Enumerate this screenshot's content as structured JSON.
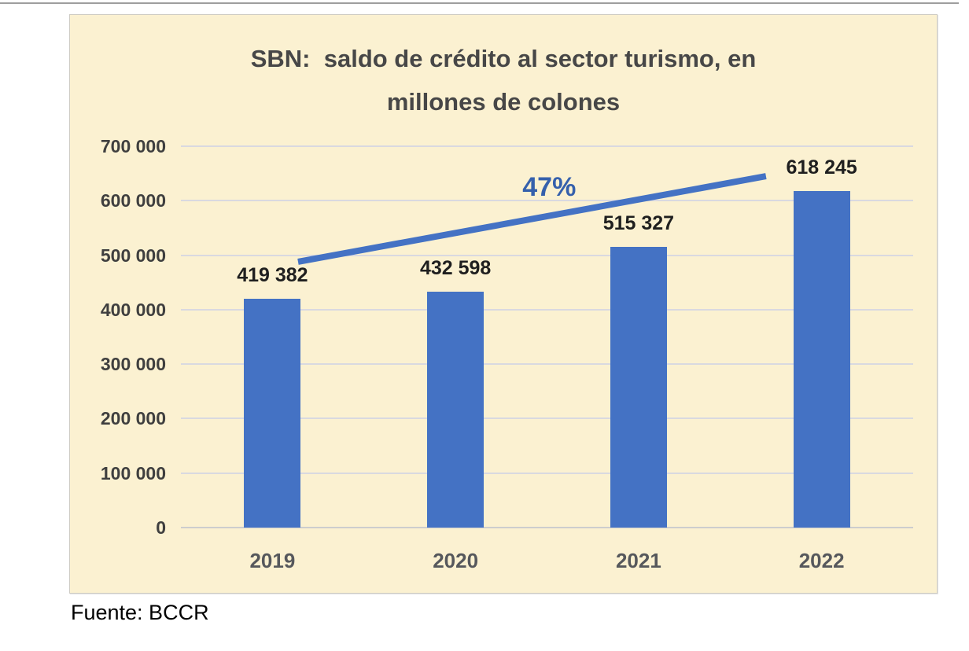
{
  "page": {
    "background": "#ffffff",
    "top_rule_color": "#9e9e9e"
  },
  "chart": {
    "frame_bg": "#fbf1d1",
    "frame_border": "#cfccc4",
    "title": {
      "line1": "SBN:  saldo de crédito al sector turismo, en",
      "line2": "millones de colones",
      "color": "#474747"
    },
    "source_note": "Fuente: BCCR"
  },
  "chart_data": {
    "type": "bar",
    "title": "SBN: saldo de crédito al sector turismo, en millones de colones",
    "categories": [
      "2019",
      "2020",
      "2021",
      "2022"
    ],
    "values": [
      419382,
      432598,
      515327,
      618245
    ],
    "value_labels": [
      "419 382",
      "432 598",
      "515 327",
      "618 245"
    ],
    "xlabel": "",
    "ylabel": "",
    "ylim": [
      0,
      700000
    ],
    "ytick_interval": 100000,
    "yticks": [
      0,
      100000,
      200000,
      300000,
      400000,
      500000,
      600000,
      700000
    ],
    "ytick_labels": [
      "0",
      "100 000",
      "200 000",
      "300 000",
      "400 000",
      "500 000",
      "600 000",
      "700 000"
    ],
    "grid": true,
    "gridline_color": "#d9d9e0",
    "axis_line_color": "#cdcdcd",
    "bar_color": "#4472c4",
    "legend": "none",
    "trendline": {
      "label": "47%",
      "color": "#4472c4",
      "label_color": "#3560ac",
      "stroke_width": 8,
      "start": {
        "x_frac": 0.16,
        "value": 488000
      },
      "end": {
        "x_frac": 0.799,
        "value": 645000
      },
      "label_pos": {
        "x_frac": 0.503,
        "y_frac": 0.068
      }
    },
    "source": "Fuente: BCCR"
  }
}
